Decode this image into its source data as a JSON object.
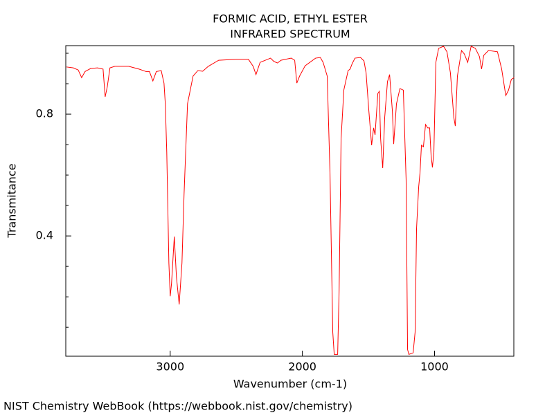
{
  "chart_data": {
    "type": "line",
    "title": "FORMIC ACID, ETHYL ESTER",
    "subtitle": "INFRARED SPECTRUM",
    "x_label": "Wavenumber (cm-1)",
    "y_label": "Transmitance",
    "source": "NIST Chemistry WebBook (https://webbook.nist.gov/chemistry)",
    "color": "#ff0000",
    "xlim": [
      3790,
      400
    ],
    "ylim": [
      0.005,
      1.025
    ],
    "xticks": [
      3000,
      2000,
      1000
    ],
    "yticks": [
      0.4,
      0.8
    ],
    "yminorticks": [
      0.1,
      0.2,
      0.3,
      0.5,
      0.6,
      0.7,
      0.9,
      1.0
    ],
    "x": [
      3785,
      3733,
      3696,
      3670,
      3644,
      3602,
      3550,
      3508,
      3492,
      3476,
      3456,
      3419,
      3314,
      3236,
      3183,
      3157,
      3131,
      3105,
      3068,
      3047,
      3037,
      3026,
      3010,
      3000,
      2990,
      2969,
      2953,
      2932,
      2911,
      2895,
      2869,
      2827,
      2791,
      2754,
      2712,
      2633,
      2503,
      2408,
      2372,
      2351,
      2320,
      2241,
      2215,
      2188,
      2162,
      2084,
      2058,
      2042,
      2021,
      1979,
      1900,
      1864,
      1843,
      1812,
      1791,
      1770,
      1759,
      1733,
      1722,
      1707,
      1686,
      1654,
      1639,
      1623,
      1602,
      1560,
      1534,
      1518,
      1497,
      1476,
      1461,
      1450,
      1429,
      1418,
      1408,
      1392,
      1377,
      1356,
      1340,
      1319,
      1309,
      1288,
      1262,
      1236,
      1215,
      1204,
      1194,
      1162,
      1147,
      1136,
      1120,
      1110,
      1099,
      1084,
      1068,
      1052,
      1037,
      1026,
      1016,
      1005,
      990,
      969,
      932,
      906,
      880,
      854,
      843,
      827,
      796,
      775,
      749,
      723,
      691,
      660,
      644,
      628,
      592,
      524,
      492,
      461,
      440,
      419,
      398
    ],
    "values": [
      0.955,
      0.952,
      0.945,
      0.92,
      0.94,
      0.95,
      0.952,
      0.948,
      0.857,
      0.89,
      0.952,
      0.957,
      0.957,
      0.948,
      0.94,
      0.94,
      0.909,
      0.94,
      0.943,
      0.902,
      0.834,
      0.675,
      0.311,
      0.202,
      0.243,
      0.398,
      0.266,
      0.175,
      0.311,
      0.539,
      0.834,
      0.925,
      0.943,
      0.941,
      0.957,
      0.977,
      0.98,
      0.98,
      0.957,
      0.93,
      0.97,
      0.984,
      0.973,
      0.968,
      0.977,
      0.984,
      0.977,
      0.902,
      0.925,
      0.959,
      0.984,
      0.986,
      0.97,
      0.925,
      0.607,
      0.084,
      0.011,
      0.011,
      0.22,
      0.72,
      0.88,
      0.943,
      0.948,
      0.966,
      0.984,
      0.986,
      0.975,
      0.936,
      0.811,
      0.698,
      0.755,
      0.732,
      0.868,
      0.875,
      0.72,
      0.623,
      0.789,
      0.907,
      0.93,
      0.811,
      0.702,
      0.834,
      0.884,
      0.879,
      0.584,
      0.027,
      0.011,
      0.016,
      0.084,
      0.425,
      0.561,
      0.607,
      0.698,
      0.693,
      0.766,
      0.755,
      0.755,
      0.664,
      0.625,
      0.675,
      0.97,
      1.016,
      1.023,
      1.005,
      0.936,
      0.789,
      0.761,
      0.925,
      1.009,
      0.998,
      0.97,
      1.023,
      1.016,
      0.989,
      0.948,
      0.993,
      1.009,
      1.005,
      0.948,
      0.861,
      0.879,
      0.914,
      0.92
    ]
  }
}
